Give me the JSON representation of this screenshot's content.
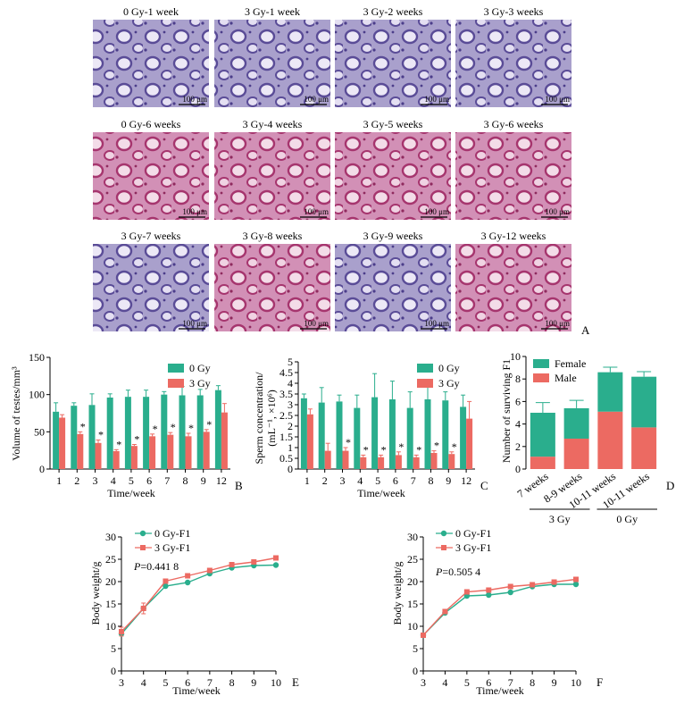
{
  "colors": {
    "green": "#2aae8d",
    "red": "#ec6a62",
    "lilac": "#a9a0cc",
    "pink": "#d290b6",
    "axis": "#000000"
  },
  "panelA": {
    "letter": "A",
    "scale_label": "100 μm",
    "rows": [
      {
        "tiles": [
          {
            "label": "0 Gy-1 week",
            "stain": "lilac"
          },
          {
            "label": "3 Gy-1 week",
            "stain": "lilac"
          },
          {
            "label": "3 Gy-2 weeks",
            "stain": "lilac"
          },
          {
            "label": "3 Gy-3 weeks",
            "stain": "lilac"
          }
        ]
      },
      {
        "tiles": [
          {
            "label": "0 Gy-6 weeks",
            "stain": "pink"
          },
          {
            "label": "3 Gy-4 weeks",
            "stain": "pink"
          },
          {
            "label": "3 Gy-5 weeks",
            "stain": "pink"
          },
          {
            "label": "3 Gy-6 weeks",
            "stain": "pink"
          }
        ]
      },
      {
        "tiles": [
          {
            "label": "3 Gy-7 weeks",
            "stain": "lilac"
          },
          {
            "label": "3 Gy-8 weeks",
            "stain": "pink"
          },
          {
            "label": "3 Gy-9 weeks",
            "stain": "lilac"
          },
          {
            "label": "3 Gy-12 weeks",
            "stain": "pink"
          }
        ]
      }
    ]
  },
  "chart_data": [
    {
      "id": "B",
      "type": "bar",
      "letter": "B",
      "ylabel": "Volume of testes/mm³",
      "xlabel": "Time/week",
      "ylim": [
        0,
        150
      ],
      "yticks": [
        0,
        50,
        100,
        150
      ],
      "categories": [
        "1",
        "2",
        "3",
        "4",
        "5",
        "6",
        "7",
        "8",
        "9",
        "12"
      ],
      "series": [
        {
          "name": "0 Gy",
          "color": "green",
          "values": [
            77,
            85,
            86,
            96,
            97,
            97,
            100,
            99,
            99,
            106
          ],
          "errors": [
            12,
            4,
            15,
            5,
            9,
            9,
            4,
            12,
            8,
            6
          ]
        },
        {
          "name": "3 Gy",
          "color": "red",
          "values": [
            69,
            47,
            35,
            24,
            31,
            44,
            46,
            44,
            50,
            76
          ],
          "errors": [
            4,
            3,
            4,
            2,
            2,
            3,
            3,
            4,
            3,
            12
          ]
        }
      ],
      "sig_marks": [
        "",
        "*",
        "*",
        "*",
        "*",
        "*",
        "*",
        "*",
        "*",
        ""
      ],
      "legend": "top-right"
    },
    {
      "id": "C",
      "type": "bar",
      "letter": "C",
      "ylabel": "Sperm concentration/(mL⁻¹, ×10⁶)",
      "ylabel_line1": "Sperm concentration/",
      "ylabel_line2": "(mL⁻¹, ×10⁶)",
      "xlabel": "Time/week",
      "ylim": [
        0,
        5
      ],
      "yticks": [
        0,
        0.5,
        1,
        1.5,
        2,
        2.5,
        3,
        3.5,
        4,
        4.5,
        5
      ],
      "categories": [
        "1",
        "2",
        "3",
        "4",
        "5",
        "6",
        "7",
        "8",
        "9",
        "12"
      ],
      "series": [
        {
          "name": "0 Gy",
          "color": "green",
          "values": [
            3.3,
            3.1,
            3.15,
            2.85,
            3.35,
            3.25,
            2.85,
            3.25,
            3.2,
            2.9
          ],
          "errors": [
            0.2,
            0.7,
            0.3,
            0.6,
            1.1,
            0.85,
            0.75,
            0.9,
            0.4,
            0.55
          ]
        },
        {
          "name": "3 Gy",
          "color": "red",
          "values": [
            2.55,
            0.85,
            0.85,
            0.55,
            0.55,
            0.65,
            0.55,
            0.75,
            0.7,
            2.35
          ],
          "errors": [
            0.25,
            0.35,
            0.15,
            0.1,
            0.1,
            0.15,
            0.1,
            0.1,
            0.1,
            0.8
          ]
        }
      ],
      "sig_marks": [
        "",
        "",
        "*",
        "*",
        "*",
        "*",
        "*",
        "*",
        "*",
        ""
      ],
      "legend": "top-right"
    },
    {
      "id": "D",
      "type": "bar",
      "stacked": true,
      "letter": "D",
      "ylabel": "Number of surviving F1",
      "ylim": [
        0,
        10
      ],
      "yticks": [
        0,
        2,
        4,
        6,
        8,
        10
      ],
      "categories": [
        "7 weeks",
        "8-9 weeks",
        "10-11 weeks",
        "10-11 weeks"
      ],
      "groups": [
        {
          "label": "3 Gy",
          "from": 0,
          "to": 1
        },
        {
          "label": "0 Gy",
          "from": 2,
          "to": 3
        }
      ],
      "series": [
        {
          "name": "Male",
          "color": "red",
          "values": [
            1.1,
            2.7,
            5.1,
            3.7
          ]
        },
        {
          "name": "Female",
          "color": "green",
          "values": [
            3.9,
            2.7,
            3.5,
            4.5
          ],
          "errors": [
            0.9,
            0.7,
            0.45,
            0.45
          ]
        }
      ],
      "legend_order": [
        "Female",
        "Male"
      ],
      "legend": "top"
    },
    {
      "id": "E",
      "type": "line",
      "letter": "E",
      "ylabel": "Body weight/g",
      "xlabel": "Time/week",
      "xlim": [
        3,
        10
      ],
      "ylim": [
        0,
        30
      ],
      "yticks": [
        0,
        5,
        10,
        15,
        20,
        25,
        30
      ],
      "x": [
        3,
        4,
        5,
        6,
        7,
        8,
        9,
        10
      ],
      "series": [
        {
          "name": "0 Gy-F1",
          "color": "green",
          "marker": "circle",
          "values": [
            8.3,
            14,
            19,
            19.8,
            21.8,
            23.1,
            23.6,
            23.7
          ]
        },
        {
          "name": "3 Gy-F1",
          "color": "red",
          "marker": "square",
          "values": [
            8.8,
            14,
            20.1,
            21.3,
            22.5,
            23.8,
            24.4,
            25.3
          ],
          "errors": [
            1,
            1.2,
            0.5,
            0.4,
            0.3,
            0.3,
            0.3,
            0.3
          ]
        }
      ],
      "annotation": "P=0.441 8",
      "annotation_italic": "P",
      "annotation_rest": "=0.441 8",
      "legend": "top-left"
    },
    {
      "id": "F",
      "type": "line",
      "letter": "F",
      "ylabel": "Body weight/g",
      "xlabel": "Time/week",
      "xlim": [
        3,
        10
      ],
      "ylim": [
        0,
        30
      ],
      "yticks": [
        0,
        5,
        10,
        15,
        20,
        25,
        30
      ],
      "x": [
        3,
        4,
        5,
        6,
        7,
        8,
        9,
        10
      ],
      "series": [
        {
          "name": "0 Gy-F1",
          "color": "green",
          "marker": "circle",
          "values": [
            8,
            13,
            16.8,
            17,
            17.6,
            18.9,
            19.4,
            19.4
          ]
        },
        {
          "name": "3 Gy-F1",
          "color": "red",
          "marker": "square",
          "values": [
            8,
            13.3,
            17.7,
            18.1,
            18.9,
            19.3,
            19.9,
            20.5
          ]
        }
      ],
      "annotation": "P=0.505 4",
      "annotation_italic": "P",
      "annotation_rest": "=0.505 4",
      "legend": "top-left"
    }
  ]
}
